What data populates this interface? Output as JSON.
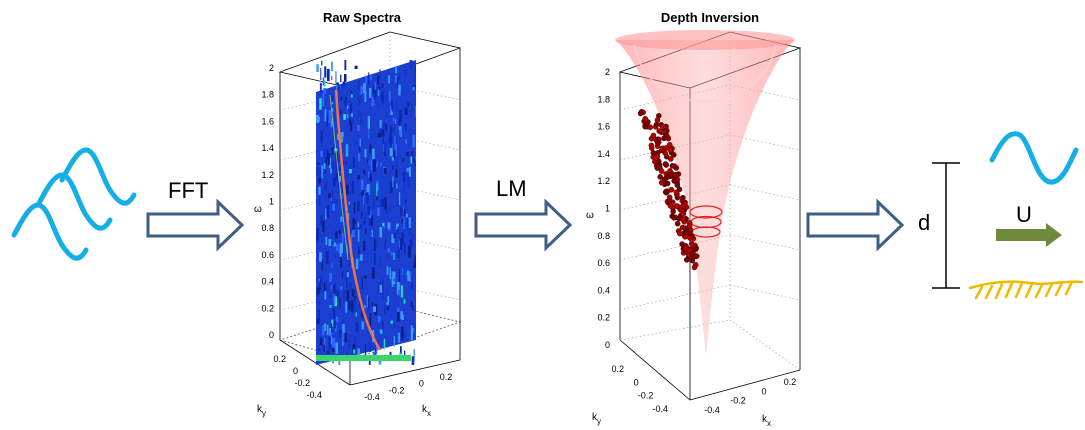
{
  "steps": {
    "fft_label": "FFT",
    "lm_label": "LM"
  },
  "raw_spectra": {
    "title": "Raw Spectra",
    "omega_label": "ω",
    "ky_label": "k",
    "ky_sub": "y",
    "kx_label": "k",
    "kx_sub": "x",
    "omega_ticks": [
      "0",
      "0.2",
      "0.4",
      "0.6",
      "0.8",
      "1",
      "1.2",
      "1.4",
      "1.6",
      "1.8",
      "2"
    ],
    "ky_ticks": [
      "0.2",
      "0",
      "-0.2",
      "-0.4"
    ],
    "kx_ticks": [
      "-0.4",
      "-0.2",
      "0",
      "0.2"
    ]
  },
  "depth_inversion": {
    "title": "Depth Inversion",
    "omega_label": "ω",
    "ky_label": "k",
    "ky_sub": "y",
    "kx_label": "k",
    "kx_sub": "x",
    "omega_ticks": [
      "0",
      "0.2",
      "0.4",
      "0.6",
      "0.8",
      "1",
      "1.2",
      "1.4",
      "1.6",
      "1.8",
      "2"
    ],
    "ky_ticks": [
      "0.2",
      "0",
      "-0.2",
      "-0.4"
    ],
    "kx_ticks": [
      "-0.4",
      "-0.2",
      "0",
      "0.2"
    ]
  },
  "result": {
    "depth_label": "d",
    "current_label": "U"
  },
  "colors": {
    "wave": "#16aee6",
    "arrow_stroke": "#3e5e86",
    "current_arrow": "#6e8b3d",
    "seabed": "#f2b800",
    "cone": "#ff8c8c",
    "points": "#b30000"
  }
}
